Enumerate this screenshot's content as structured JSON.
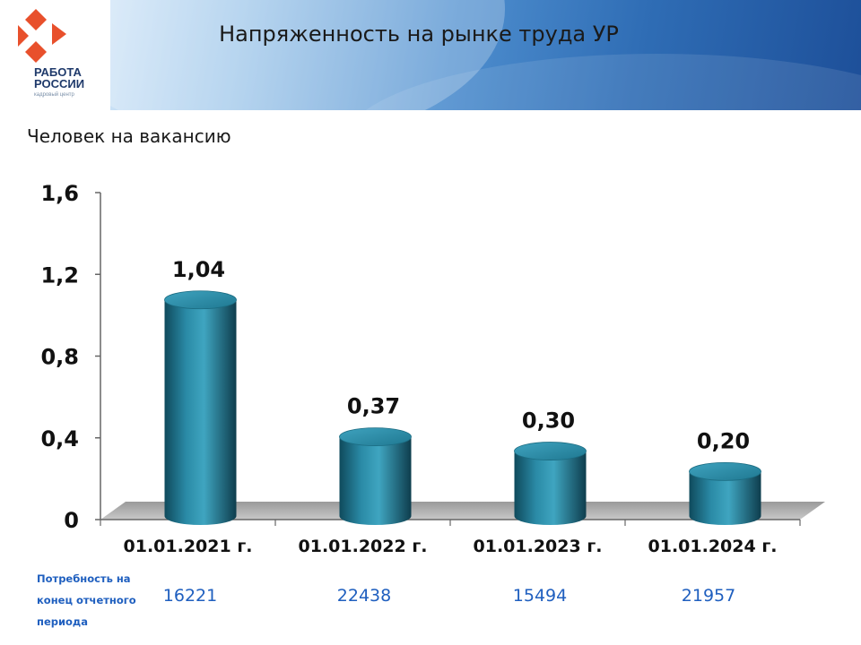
{
  "logo": {
    "line1": "РАБОТА",
    "line2": "РОССИИ",
    "tagline": "кадровый центр",
    "colors": {
      "accent": "#e8502c",
      "text": "#1f3a6b"
    }
  },
  "header": {
    "title": "Напряженность на рынке труда УР"
  },
  "subtitle": "Человек на вакансию",
  "chart_data": {
    "type": "bar",
    "title": "",
    "xlabel": "",
    "ylabel": "",
    "categories": [
      "01.01.2021 г.",
      "01.01.2022 г.",
      "01.01.2023 г.",
      "01.01.2024 г."
    ],
    "values": [
      1.04,
      0.37,
      0.3,
      0.2
    ],
    "value_labels": [
      "1,04",
      "0,37",
      "0,30",
      "0,20"
    ],
    "ylim": [
      0,
      1.6
    ],
    "yticks": [
      0,
      0.4,
      0.8,
      1.2,
      1.6
    ],
    "ytick_labels": [
      "0",
      "0,4",
      "0,8",
      "1,2",
      "1,6"
    ],
    "grid": false,
    "bar_style": "3d-cylinder",
    "bar_color": "#2a8aa6"
  },
  "footer": {
    "label": "Потребность на конец отчетного периода",
    "values": [
      "16221",
      "22438",
      "15494",
      "21957"
    ],
    "color": "#1f5fbf"
  }
}
